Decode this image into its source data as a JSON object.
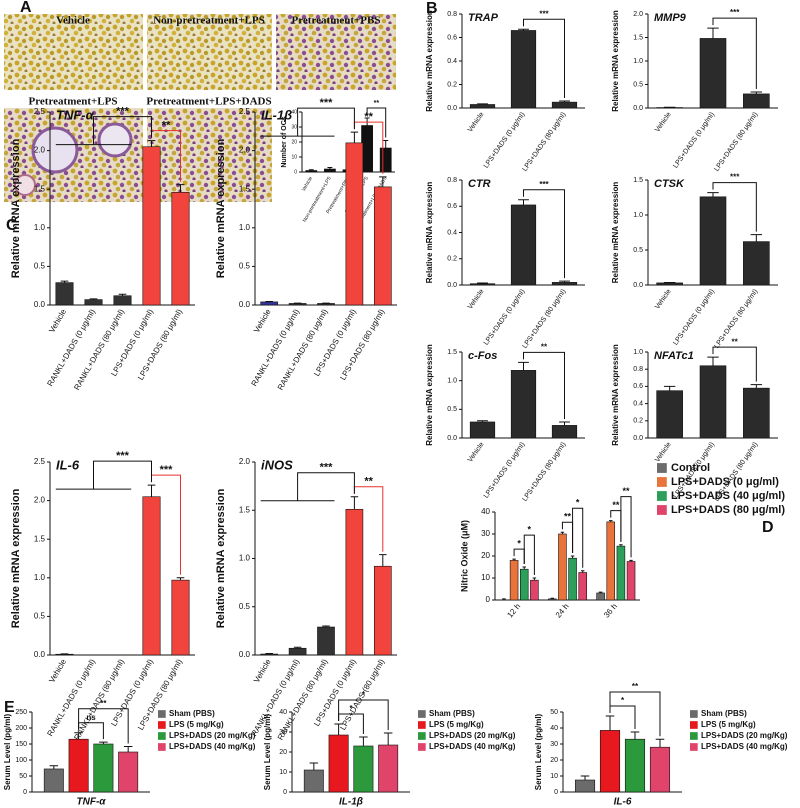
{
  "panel_labels": [
    "A",
    "B",
    "C",
    "D",
    "E"
  ],
  "panel_a_images": [
    "Vehicle",
    "Non-pretreatment+LPS",
    "Pretreatment+PBS",
    "Pretreatment+LPS",
    "Pretreatment+LPS+DADS"
  ],
  "chart_data": [
    {
      "type": "bar",
      "ylabel": "Number of OCs",
      "categories": [
        "Vehicle",
        "Non-pretreatment+LPS",
        "Pretreatment+PBS",
        "Pretreatment+LPS",
        "Pretreatment+LPS+DADS"
      ],
      "values": [
        1,
        2,
        1.5,
        31,
        16
      ],
      "errors": [
        0.5,
        1,
        0.5,
        5,
        5
      ],
      "color": "#111111",
      "ylim": [
        0,
        40
      ],
      "yticks": [
        0,
        10,
        20,
        30,
        40
      ],
      "annotations": [
        {
          "text": "**",
          "left": 3,
          "right": 4
        }
      ]
    },
    {
      "type": "bar",
      "title": "TRAP",
      "ylabel": "Relative mRNA expression",
      "categories": [
        "Vehicle",
        "LPS+DADS (0 μg/ml)",
        "LPS+DADS (80 μg/ml)"
      ],
      "values": [
        0.03,
        0.66,
        0.05
      ],
      "errors": [
        0.005,
        0.01,
        0.01
      ],
      "color": "#2b2b2b",
      "ylim": [
        0,
        0.8
      ],
      "yticks": [
        {
          "value": 0,
          "label": "0.0"
        },
        0.2,
        0.4,
        0.6,
        0.8
      ],
      "annotations": [
        {
          "text": "***",
          "left": 1,
          "right": 2
        }
      ]
    },
    {
      "type": "bar",
      "title": "MMP9",
      "ylabel": "Relative mRNA expression",
      "categories": [
        "Vehicle",
        "LPS+DADS (0 μg/ml)",
        "LPS+DADS (80 μg/ml)"
      ],
      "values": [
        0.01,
        1.48,
        0.3
      ],
      "errors": [
        0.005,
        0.22,
        0.04
      ],
      "color": "#2b2b2b",
      "ylim": [
        0,
        2
      ],
      "yticks": [
        {
          "value": 0,
          "label": "0.0"
        },
        0.5,
        {
          "value": 1,
          "label": "1.0"
        },
        1.5,
        {
          "value": 2,
          "label": "2.0"
        }
      ],
      "annotations": [
        {
          "text": "***",
          "left": 1,
          "right": 2
        }
      ]
    },
    {
      "type": "bar",
      "title": "CTR",
      "ylabel": "Relative mRNA expression",
      "categories": [
        "Vehicle",
        "LPS+DADS (0 μg/ml)",
        "LPS+DADS (80 μg/ml)"
      ],
      "values": [
        0.01,
        0.61,
        0.02
      ],
      "errors": [
        0.005,
        0.04,
        0.01
      ],
      "color": "#2b2b2b",
      "ylim": [
        0,
        0.8
      ],
      "yticks": [
        {
          "value": 0,
          "label": "0.0"
        },
        0.2,
        0.4,
        0.6,
        0.8
      ],
      "annotations": [
        {
          "text": "***",
          "left": 1,
          "right": 2
        }
      ]
    },
    {
      "type": "bar",
      "title": "CTSK",
      "ylabel": "Relative mRNA expression",
      "categories": [
        "Vehicle",
        "LPS+DADS (0 μg/ml)",
        "LPS+DADS (80 μg/ml)"
      ],
      "values": [
        0.03,
        1.26,
        0.62
      ],
      "errors": [
        0.005,
        0.06,
        0.1
      ],
      "color": "#2b2b2b",
      "ylim": [
        0,
        1.5
      ],
      "yticks": [
        {
          "value": 0,
          "label": "0.0"
        },
        0.5,
        {
          "value": 1,
          "label": "1.0"
        },
        1.5
      ],
      "annotations": [
        {
          "text": "***",
          "left": 1,
          "right": 2
        }
      ]
    },
    {
      "type": "bar",
      "title": "c-Fos",
      "ylabel": "Relative mRNA expression",
      "categories": [
        "Vehicle",
        "LPS+DADS (0 μg/ml)",
        "LPS+DADS (80 μg/ml)"
      ],
      "values": [
        0.28,
        1.18,
        0.22
      ],
      "errors": [
        0.02,
        0.14,
        0.06
      ],
      "color": "#2b2b2b",
      "ylim": [
        0,
        1.5
      ],
      "yticks": [
        {
          "value": 0,
          "label": "0.0"
        },
        0.5,
        {
          "value": 1,
          "label": "1.0"
        },
        1.5
      ],
      "annotations": [
        {
          "text": "**",
          "left": 1,
          "right": 2
        }
      ]
    },
    {
      "type": "bar",
      "title": "NFATc1",
      "ylabel": "Relative mRNA expression",
      "categories": [
        "Vehicle",
        "LPS+DADS (0 μg/ml)",
        "LPS+DADS (80 μg/ml)"
      ],
      "values": [
        0.55,
        0.84,
        0.58
      ],
      "errors": [
        0.05,
        0.1,
        0.04
      ],
      "color": "#2b2b2b",
      "ylim": [
        0,
        1
      ],
      "yticks": [
        {
          "value": 0,
          "label": "0.0"
        },
        0.2,
        0.4,
        0.6,
        0.8,
        {
          "value": 1,
          "label": "1.0"
        }
      ],
      "annotations": [
        {
          "text": "**",
          "left": 1,
          "right": 2
        }
      ]
    },
    {
      "type": "bar",
      "title": "TNF-α",
      "ylabel": "Relative mRNA expression",
      "categories": [
        "Vehicle",
        "RANKL+DADS (0 μg/ml)",
        "RANKL+DADS (80 μg/ml)",
        "LPS+DADS (0 μg/ml)",
        "LPS+DADS (80 μg/ml)"
      ],
      "values": [
        0.29,
        0.07,
        0.12,
        2.05,
        1.46
      ],
      "errors": [
        0.02,
        0.01,
        0.02,
        0.08,
        0.1
      ],
      "colors": [
        "#333333",
        "#333333",
        "#333333",
        "#f0443c",
        "#f0443c"
      ],
      "ylim": [
        0,
        2.5
      ],
      "yticks": [
        {
          "value": 0,
          "label": "0.0"
        },
        0.5,
        {
          "value": 1,
          "label": "1.0"
        },
        1.5,
        {
          "value": 2,
          "label": "2.0"
        },
        2.5
      ],
      "annotations": [
        {
          "text": "**",
          "left": 3,
          "right": 4,
          "color": "#e8302a"
        },
        {
          "text": "***",
          "left": [
            0,
            2
          ],
          "right": 3
        }
      ]
    },
    {
      "type": "bar",
      "title": "IL-1β",
      "ylabel": "Relative mRNA expression",
      "categories": [
        "Vehicle",
        "RANKL+DADS (0 μg/ml)",
        "RANKL+DADS (80 μg/ml)",
        "LPS+DADS (0 μg/ml)",
        "LPS+DADS (80 μg/ml)"
      ],
      "values": [
        0.04,
        0.02,
        0.02,
        2.1,
        1.53
      ],
      "errors": [
        0.005,
        0.005,
        0.005,
        0.14,
        0.13
      ],
      "colors": [
        "#333399",
        "#333333",
        "#333333",
        "#f0443c",
        "#f0443c"
      ],
      "ylim": [
        0,
        2.5
      ],
      "yticks": [
        {
          "value": 0,
          "label": "0.0"
        },
        0.5,
        {
          "value": 1,
          "label": "1.0"
        },
        1.5,
        {
          "value": 2,
          "label": "2.0"
        },
        2.5
      ],
      "annotations": [
        {
          "text": "**",
          "left": 3,
          "right": 4,
          "color": "#e8302a"
        },
        {
          "text": "***",
          "left": [
            0,
            2
          ],
          "right": 3
        }
      ]
    },
    {
      "type": "bar",
      "title": "IL-6",
      "ylabel": "Relative mRNA expression",
      "categories": [
        "Vehicle",
        "RANKL+DADS (0 μg/ml)",
        "RANKL+DADS (80 μg/ml)",
        "LPS+DADS (0 μg/ml)",
        "LPS+DADS (80 μg/ml)"
      ],
      "values": [
        0.01,
        0,
        0,
        2.05,
        0.97
      ],
      "errors": [
        0.005,
        0,
        0,
        0.15,
        0.03
      ],
      "colors": [
        "#333333",
        "#333333",
        "#333333",
        "#f0443c",
        "#f0443c"
      ],
      "ylim": [
        0,
        2.5
      ],
      "yticks": [
        {
          "value": 0,
          "label": "0.0"
        },
        0.5,
        {
          "value": 1,
          "label": "1.0"
        },
        1.5,
        {
          "value": 2,
          "label": "2.0"
        },
        2.5
      ],
      "annotations": [
        {
          "text": "***",
          "left": 3,
          "right": 4,
          "color": "#e8302a"
        },
        {
          "text": "***",
          "left": [
            0,
            2
          ],
          "right": 3
        }
      ]
    },
    {
      "type": "bar",
      "title": "iNOS",
      "ylabel": "Relative mRNA expression",
      "categories": [
        "Vehicle",
        "RANKL+DADS (0 μg/ml)",
        "RANKL+DADS (80 μg/ml)",
        "LPS+DADS (0 μg/ml)",
        "LPS+DADS (80 μg/ml)"
      ],
      "values": [
        0.01,
        0.07,
        0.29,
        1.51,
        0.92
      ],
      "errors": [
        0.005,
        0.01,
        0.01,
        0.13,
        0.12
      ],
      "colors": [
        "#333333",
        "#333333",
        "#333333",
        "#f0443c",
        "#f0443c"
      ],
      "ylim": [
        0,
        2
      ],
      "yticks": [
        {
          "value": 0,
          "label": "0.0"
        },
        0.5,
        {
          "value": 1,
          "label": "1.0"
        },
        1.5,
        {
          "value": 2,
          "label": "2.0"
        }
      ],
      "annotations": [
        {
          "text": "**",
          "left": 3,
          "right": 4,
          "color": "#e8302a"
        },
        {
          "text": "***",
          "left": [
            0,
            2
          ],
          "right": 3
        }
      ]
    },
    {
      "type": "bar",
      "ylabel": "Nitric Oxide (μM)",
      "categories": [
        "12 h",
        "24 h",
        "36 h"
      ],
      "series": [
        {
          "name": "Control",
          "color": "#6b6b6b",
          "values": [
            0,
            0.5,
            3.2
          ],
          "errors": [
            0.5,
            0.3,
            0.4
          ]
        },
        {
          "name": "LPS+DADS (0 μg/ml)",
          "color": "#e8743b",
          "values": [
            18,
            30,
            35.5
          ],
          "errors": [
            0.6,
            0.8,
            0.6
          ]
        },
        {
          "name": "LPS+DADS (40 μg/ml)",
          "color": "#2ca05a",
          "values": [
            14,
            19,
            24.5
          ],
          "errors": [
            1,
            1,
            0.6
          ]
        },
        {
          "name": "LPS+DADS (80 μg/ml)",
          "color": "#e0446a",
          "values": [
            9,
            12.5,
            17.5
          ],
          "errors": [
            1,
            0.8,
            0.5
          ]
        }
      ],
      "ylim": [
        0,
        40
      ],
      "yticks": [
        0,
        10,
        20,
        30,
        40
      ],
      "legend": "right",
      "annotations": [
        {
          "text": "*",
          "category": 0,
          "left": 1,
          "right": 2
        },
        {
          "text": "*",
          "category": 0,
          "left": 2,
          "right": 3
        },
        {
          "text": "**",
          "category": 1,
          "left": 1,
          "right": 2
        },
        {
          "text": "*",
          "category": 1,
          "left": 2,
          "right": 3
        },
        {
          "text": "**",
          "category": 2,
          "left": 1,
          "right": 2
        },
        {
          "text": "**",
          "category": 2,
          "left": 2,
          "right": 3
        }
      ]
    },
    {
      "type": "bar",
      "xlabel": "TNF-α",
      "ylabel": "Serum Level (pg/ml)",
      "series": [
        {
          "name": "Sham (PBS)",
          "color": "#6b6b6b",
          "values": [
            72
          ],
          "errors": [
            10
          ]
        },
        {
          "name": "LPS (5 mg/Kg)",
          "color": "#e8191e",
          "values": [
            165
          ],
          "errors": [
            20
          ]
        },
        {
          "name": "LPS+DADS (20 mg/Kg)",
          "color": "#2c9a3c",
          "values": [
            150
          ],
          "errors": [
            6
          ]
        },
        {
          "name": "LPS+DADS (40 mg/Kg)",
          "color": "#e0446a",
          "values": [
            125
          ],
          "errors": [
            17
          ]
        }
      ],
      "ylim": [
        0,
        250
      ],
      "yticks": [
        0,
        50,
        100,
        150,
        200,
        250
      ],
      "legend": "right",
      "annotations": [
        {
          "text": "ns",
          "category": 0,
          "left": 1,
          "right": 2
        },
        {
          "text": "**",
          "category": 0,
          "left": 1,
          "right": 3
        }
      ]
    },
    {
      "type": "bar",
      "xlabel": "IL-1β",
      "ylabel": "Serum Level (pg/ml)",
      "series": [
        {
          "name": "Sham (PBS)",
          "color": "#6b6b6b",
          "values": [
            11
          ],
          "errors": [
            3.5
          ]
        },
        {
          "name": "LPS (5 mg/Kg)",
          "color": "#e8191e",
          "values": [
            28.5
          ],
          "errors": [
            5.5
          ]
        },
        {
          "name": "LPS+DADS (20 mg/Kg)",
          "color": "#2c9a3c",
          "values": [
            23
          ],
          "errors": [
            4.5
          ]
        },
        {
          "name": "LPS+DADS (40 mg/Kg)",
          "color": "#e0446a",
          "values": [
            23.5
          ],
          "errors": [
            6
          ]
        }
      ],
      "ylim": [
        0,
        40
      ],
      "yticks": [
        0,
        10,
        20,
        30,
        40
      ],
      "legend": "right",
      "annotations": [
        {
          "text": "*",
          "category": 0,
          "left": 1,
          "right": 2
        },
        {
          "text": "*",
          "category": 0,
          "left": 1,
          "right": 3
        }
      ]
    },
    {
      "type": "bar",
      "xlabel": "IL-6",
      "ylabel": "Serum Level (pg/ml)",
      "series": [
        {
          "name": "Sham (PBS)",
          "color": "#6b6b6b",
          "values": [
            7.5
          ],
          "errors": [
            2.5
          ]
        },
        {
          "name": "LPS (5 mg/Kg)",
          "color": "#e8191e",
          "values": [
            38.5
          ],
          "errors": [
            9
          ]
        },
        {
          "name": "LPS+DADS (20 mg/Kg)",
          "color": "#2c9a3c",
          "values": [
            33
          ],
          "errors": [
            4.5
          ]
        },
        {
          "name": "LPS+DADS (40 mg/Kg)",
          "color": "#e0446a",
          "values": [
            28
          ],
          "errors": [
            5
          ]
        }
      ],
      "ylim": [
        0,
        50
      ],
      "yticks": [
        0,
        10,
        20,
        30,
        40,
        50
      ],
      "legend": "right",
      "annotations": [
        {
          "text": "*",
          "category": 0,
          "left": 1,
          "right": 2
        },
        {
          "text": "**",
          "category": 0,
          "left": 1,
          "right": 3
        }
      ]
    }
  ]
}
